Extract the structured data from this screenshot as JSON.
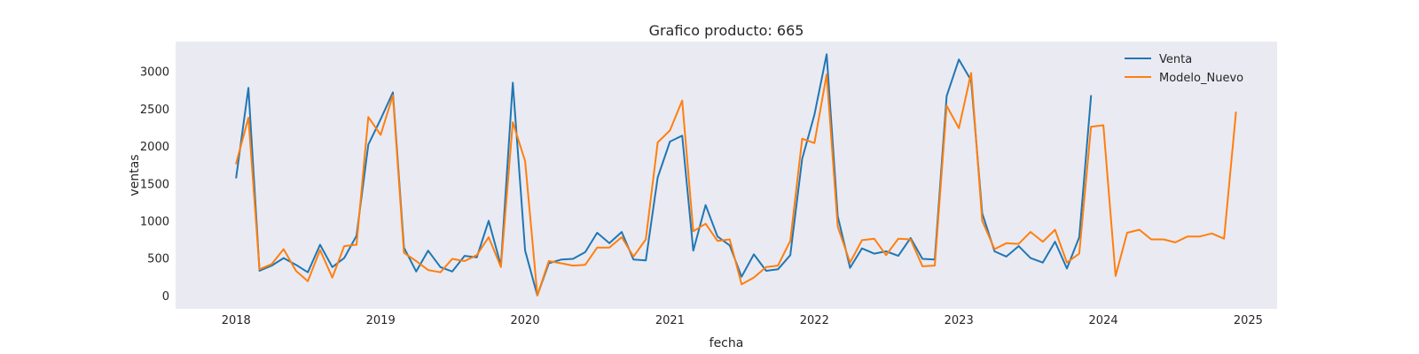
{
  "chart_data": {
    "type": "line",
    "title": "Grafico producto: 665",
    "xlabel": "fecha",
    "ylabel": "ventas",
    "xlim": [
      "2017-08-01",
      "2025-03-15"
    ],
    "ylim": [
      -180,
      3400
    ],
    "grid": false,
    "legend_position": "top-right",
    "x_ticks": [
      {
        "date": "2018-01-01",
        "label": "2018"
      },
      {
        "date": "2019-01-01",
        "label": "2019"
      },
      {
        "date": "2020-01-01",
        "label": "2020"
      },
      {
        "date": "2021-01-01",
        "label": "2021"
      },
      {
        "date": "2022-01-01",
        "label": "2022"
      },
      {
        "date": "2023-01-01",
        "label": "2023"
      },
      {
        "date": "2024-01-01",
        "label": "2024"
      },
      {
        "date": "2025-01-01",
        "label": "2025"
      }
    ],
    "y_ticks": [
      {
        "value": 0,
        "label": "0"
      },
      {
        "value": 500,
        "label": "500"
      },
      {
        "value": 1000,
        "label": "1000"
      },
      {
        "value": 1500,
        "label": "1500"
      },
      {
        "value": 2000,
        "label": "2000"
      },
      {
        "value": 2500,
        "label": "2500"
      },
      {
        "value": 3000,
        "label": "3000"
      }
    ],
    "x_start": "2018-01",
    "series": [
      {
        "name": "Venta",
        "color": "#1f77b4",
        "values": [
          1580,
          2780,
          330,
          400,
          500,
          410,
          310,
          680,
          380,
          500,
          800,
          2020,
          2360,
          2720,
          640,
          320,
          600,
          380,
          320,
          530,
          510,
          1000,
          400,
          2850,
          600,
          0,
          430,
          480,
          490,
          580,
          840,
          700,
          850,
          480,
          470,
          1580,
          2060,
          2140,
          600,
          1210,
          790,
          670,
          250,
          550,
          330,
          350,
          540,
          1830,
          2420,
          3230,
          1060,
          370,
          630,
          560,
          590,
          530,
          770,
          490,
          480,
          2670,
          3160,
          2880,
          1100,
          590,
          520,
          660,
          500,
          440,
          720,
          360,
          780,
          2670
        ]
      },
      {
        "name": "Modelo_Nuevo",
        "color": "#ff7f0e",
        "values": [
          1770,
          2380,
          350,
          420,
          620,
          330,
          190,
          610,
          240,
          660,
          680,
          2390,
          2150,
          2680,
          570,
          460,
          340,
          310,
          490,
          460,
          540,
          780,
          380,
          2320,
          1800,
          0,
          460,
          430,
          400,
          410,
          640,
          640,
          780,
          520,
          750,
          2050,
          2210,
          2610,
          860,
          960,
          730,
          750,
          150,
          240,
          380,
          400,
          730,
          2100,
          2040,
          2960,
          920,
          440,
          740,
          760,
          540,
          760,
          750,
          390,
          400,
          2540,
          2240,
          2980,
          1000,
          620,
          700,
          690,
          850,
          720,
          880,
          440,
          560,
          2260,
          2280,
          260,
          840,
          880,
          750,
          750,
          710,
          790,
          790,
          830,
          760,
          2450
        ]
      }
    ]
  }
}
